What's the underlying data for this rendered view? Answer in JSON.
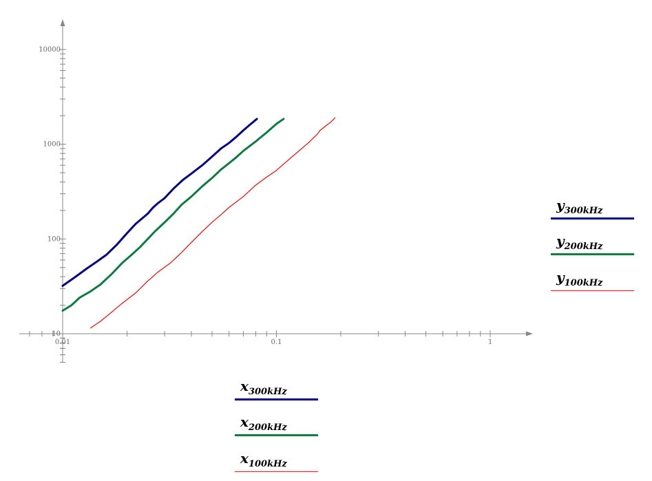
{
  "chart_data": {
    "type": "line",
    "x_scale": "log",
    "y_scale": "log",
    "xlim": [
      0.01,
      1
    ],
    "ylim": [
      10,
      10000
    ],
    "x_tick_labels": [
      "0.01",
      "0.1",
      "1"
    ],
    "y_tick_labels": [
      "10",
      "100",
      "1000",
      "10000"
    ],
    "series": [
      {
        "name": "y300kHz",
        "x_name": "x300kHz",
        "color": "#00008b",
        "stroke": "thick",
        "x": [
          0.01,
          0.0115,
          0.013,
          0.0145,
          0.016,
          0.018,
          0.02,
          0.022,
          0.025,
          0.0265,
          0.028,
          0.03,
          0.033,
          0.0365,
          0.04,
          0.045,
          0.05,
          0.055,
          0.06,
          0.065,
          0.07,
          0.075,
          0.081
        ],
        "y": [
          32,
          40,
          49,
          58,
          68,
          88,
          115,
          145,
          185,
          215,
          240,
          270,
          340,
          420,
          490,
          600,
          740,
          900,
          1030,
          1200,
          1400,
          1600,
          1850
        ]
      },
      {
        "name": "y200kHz",
        "x_name": "x200kHz",
        "color": "#0b7d41",
        "stroke": "thick",
        "x": [
          0.01,
          0.011,
          0.012,
          0.0135,
          0.015,
          0.017,
          0.019,
          0.021,
          0.023,
          0.025,
          0.027,
          0.03,
          0.033,
          0.036,
          0.04,
          0.045,
          0.05,
          0.055,
          0.06,
          0.065,
          0.07,
          0.08,
          0.09,
          0.1,
          0.108
        ],
        "y": [
          17.5,
          20,
          24,
          28,
          33,
          43,
          56,
          68,
          82,
          100,
          120,
          150,
          185,
          230,
          280,
          360,
          440,
          540,
          630,
          730,
          850,
          1070,
          1330,
          1640,
          1850
        ]
      },
      {
        "name": "y100kHz",
        "x_name": "x100kHz",
        "color": "#ff0000",
        "stroke": "thin",
        "x": [
          0.0135,
          0.015,
          0.017,
          0.019,
          0.022,
          0.025,
          0.028,
          0.032,
          0.036,
          0.04,
          0.045,
          0.05,
          0.055,
          0.06,
          0.07,
          0.08,
          0.09,
          0.1,
          0.11,
          0.125,
          0.14,
          0.155,
          0.16,
          0.17,
          0.18,
          0.188
        ],
        "y": [
          11.5,
          13.5,
          17,
          21,
          27,
          36,
          45,
          56,
          72,
          92,
          120,
          150,
          180,
          215,
          280,
          370,
          450,
          530,
          640,
          820,
          1020,
          1270,
          1400,
          1560,
          1720,
          1900
        ]
      }
    ]
  },
  "legend_y": [
    {
      "var": "y",
      "sub": "300kHz",
      "color": "#00008b"
    },
    {
      "var": "y",
      "sub": "200kHz",
      "color": "#0b7d41"
    },
    {
      "var": "y",
      "sub": "100kHz",
      "color": "#ff0000"
    }
  ],
  "legend_x": [
    {
      "var": "x",
      "sub": "300kHz",
      "color": "#00008b"
    },
    {
      "var": "x",
      "sub": "200kHz",
      "color": "#0b7d41"
    },
    {
      "var": "x",
      "sub": "100kHz",
      "color": "#ff0000"
    }
  ]
}
